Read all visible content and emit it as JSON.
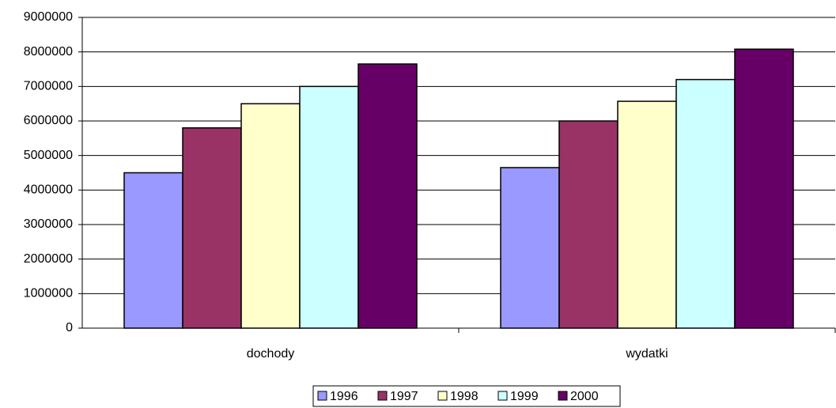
{
  "chart_data": {
    "type": "bar",
    "categories": [
      "dochody",
      "wydatki"
    ],
    "series": [
      {
        "name": "1996",
        "color": "#9999ff",
        "values": [
          4500000,
          4650000
        ]
      },
      {
        "name": "1997",
        "color": "#993366",
        "values": [
          5800000,
          6000000
        ]
      },
      {
        "name": "1998",
        "color": "#ffffcc",
        "values": [
          6500000,
          6570000
        ]
      },
      {
        "name": "1999",
        "color": "#ccffff",
        "values": [
          7000000,
          7200000
        ]
      },
      {
        "name": "2000",
        "color": "#660066",
        "values": [
          7650000,
          8080000
        ]
      }
    ],
    "ylim": [
      0,
      9000000
    ],
    "yticks": [
      0,
      1000000,
      2000000,
      3000000,
      4000000,
      5000000,
      6000000,
      7000000,
      8000000,
      9000000
    ],
    "grid": true,
    "legend": "bottom"
  }
}
